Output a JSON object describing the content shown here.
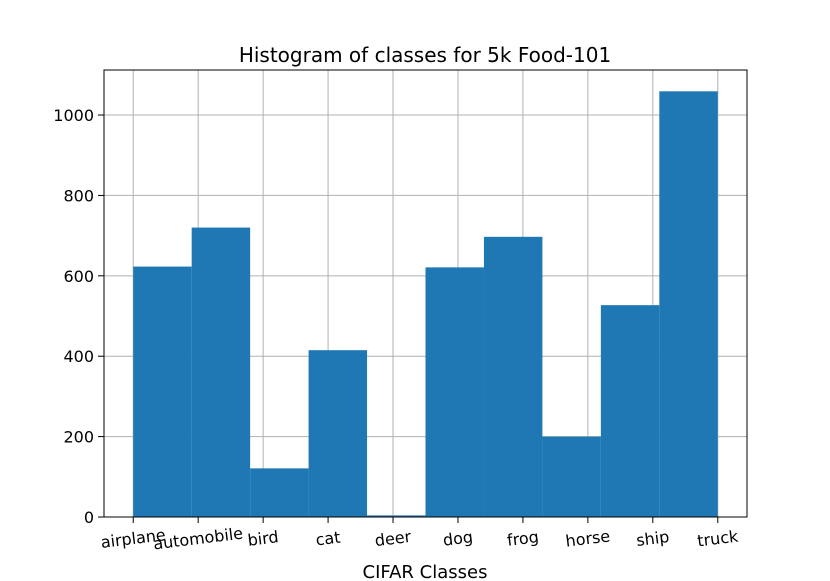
{
  "chart_data": {
    "type": "bar",
    "title": "Histogram of classes for 5k Food-101",
    "xlabel": "CIFAR Classes",
    "ylabel": "",
    "categories": [
      "airplane",
      "automobile",
      "bird",
      "cat",
      "deer",
      "dog",
      "frog",
      "horse",
      "ship",
      "truck"
    ],
    "bins": [
      {
        "start": 0.0,
        "end": 0.9,
        "value": 623
      },
      {
        "start": 0.9,
        "end": 1.8,
        "value": 720
      },
      {
        "start": 1.8,
        "end": 2.7,
        "value": 121
      },
      {
        "start": 2.7,
        "end": 3.6,
        "value": 415
      },
      {
        "start": 3.6,
        "end": 4.5,
        "value": 4
      },
      {
        "start": 4.5,
        "end": 5.4,
        "value": 621
      },
      {
        "start": 5.4,
        "end": 6.3,
        "value": 697
      },
      {
        "start": 6.3,
        "end": 7.2,
        "value": 200
      },
      {
        "start": 7.2,
        "end": 8.1,
        "value": 527
      },
      {
        "start": 8.1,
        "end": 9.0,
        "value": 1059
      }
    ],
    "yticks": [
      0,
      200,
      400,
      600,
      800,
      1000
    ],
    "xlim": [
      -0.45,
      9.45
    ],
    "ylim": [
      0,
      1112
    ],
    "grid": true,
    "bar_color": "#1f77b4",
    "grid_color": "#b0b0b0"
  }
}
